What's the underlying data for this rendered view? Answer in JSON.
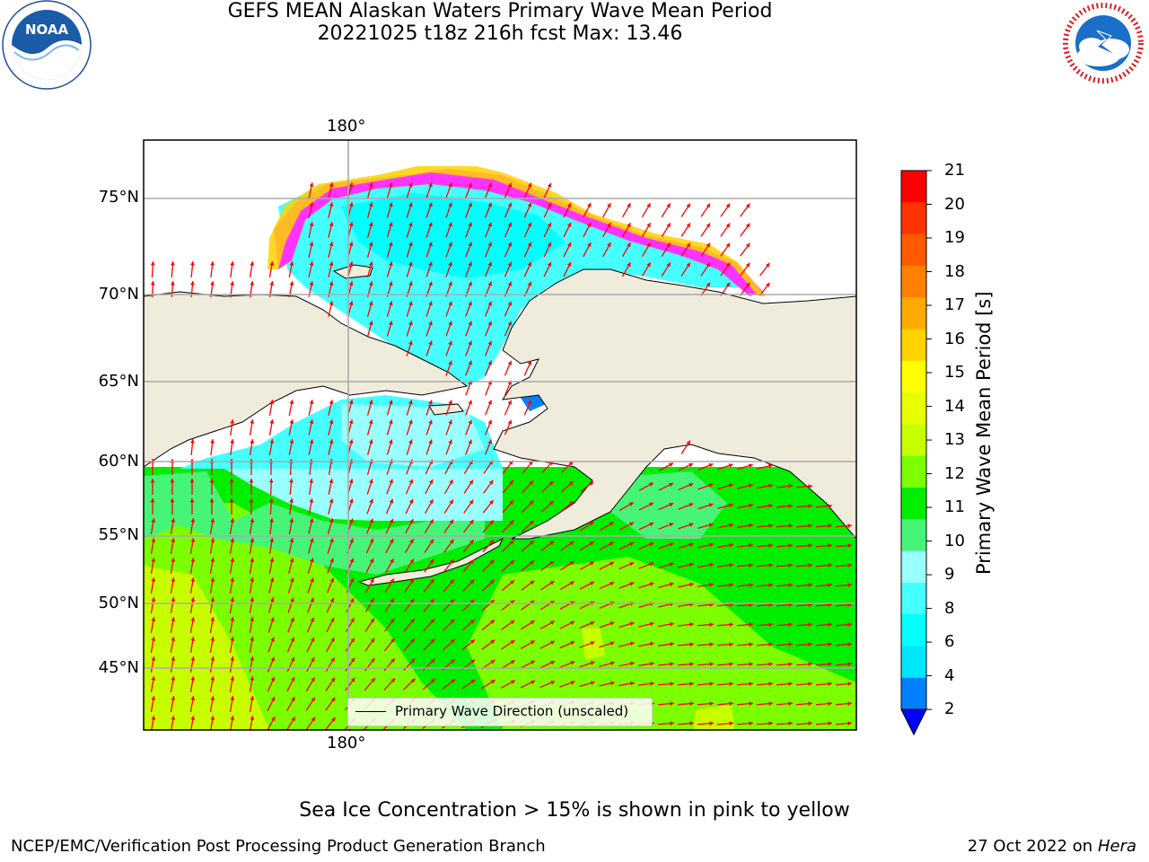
{
  "header": {
    "title_line1": "GEFS MEAN Alaskan Waters Primary Wave Mean Period",
    "title_line2": "20221025 t18z 216h fcst   Max: 13.46"
  },
  "logos": {
    "left": "noaa-logo",
    "right": "nws-logo",
    "noaa_text": "NOAA",
    "noaa_ring_text": "NATIONAL OCEANIC AND ATMOSPHERIC ADMINISTRATION · U.S. DEPARTMENT OF COMMERCE",
    "nws_ring_text": "NATIONAL WEATHER SERVICE"
  },
  "map": {
    "lon_label_top": "180°",
    "lon_label_bottom": "180°",
    "lat_labels": [
      "75°N",
      "70°N",
      "65°N",
      "60°N",
      "55°N",
      "50°N",
      "45°N"
    ],
    "land_color": "#efecdc",
    "arrow_color": "#ff0000",
    "legend_label": "Primary Wave Direction (unscaled)"
  },
  "colorbar": {
    "label": "Primary Wave Mean Period [s]",
    "ticks": [
      "21",
      "20",
      "19",
      "18",
      "17",
      "16",
      "15",
      "14",
      "13",
      "12",
      "11",
      "10",
      "9",
      "8",
      "6",
      "4",
      "2"
    ],
    "colors": [
      "#ff0000",
      "#ff3300",
      "#ff5a00",
      "#ff8000",
      "#ffaa00",
      "#ffd200",
      "#ffff00",
      "#e8ff00",
      "#c8ff00",
      "#7cff00",
      "#00ee00",
      "#46f578",
      "#9affff",
      "#46ffff",
      "#00ffff",
      "#00e6ff",
      "#0080ff",
      "#0000ff"
    ]
  },
  "footer": {
    "note": "Sea Ice Concentration > 15% is shown in pink to yellow",
    "credit_left": "NCEP/EMC/Verification Post Processing Product Generation Branch",
    "credit_right_prefix": "27 Oct 2022 on ",
    "credit_right_host": "Hera"
  }
}
